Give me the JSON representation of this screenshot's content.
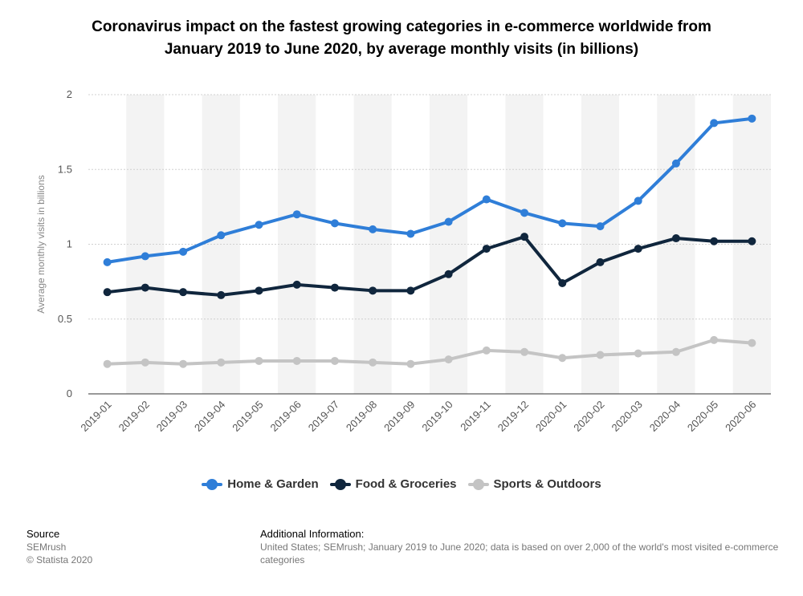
{
  "title_lines": [
    "Coronavirus impact on the fastest growing categories in e-commerce worldwide from",
    "January 2019 to June 2020, by average monthly visits (in billions)"
  ],
  "chart_data": {
    "type": "line",
    "title": "Coronavirus impact on the fastest growing categories in e-commerce worldwide from January 2019 to June 2020, by average monthly visits (in billions)",
    "xlabel": "",
    "ylabel": "Average monthly visits in billions",
    "ylim": [
      0,
      2
    ],
    "yticks": [
      "0",
      "0.5",
      "1",
      "1.5",
      "2"
    ],
    "categories": [
      "2019-01",
      "2019-02",
      "2019-03",
      "2019-04",
      "2019-05",
      "2019-06",
      "2019-07",
      "2019-08",
      "2019-09",
      "2019-10",
      "2019-11",
      "2019-12",
      "2020-01",
      "2020-02",
      "2020-03",
      "2020-04",
      "2020-05",
      "2020-06"
    ],
    "grid": true,
    "legend": "bottom",
    "series": [
      {
        "name": "Home & Garden",
        "color": "#2f7ed8",
        "values": [
          0.88,
          0.92,
          0.95,
          1.06,
          1.13,
          1.2,
          1.14,
          1.1,
          1.07,
          1.15,
          1.3,
          1.21,
          1.14,
          1.12,
          1.29,
          1.54,
          1.81,
          1.84
        ]
      },
      {
        "name": "Food & Groceries",
        "color": "#10263d",
        "values": [
          0.68,
          0.71,
          0.68,
          0.66,
          0.69,
          0.73,
          0.71,
          0.69,
          0.69,
          0.8,
          0.97,
          1.05,
          0.74,
          0.88,
          0.97,
          1.04,
          1.02,
          1.02
        ]
      },
      {
        "name": "Sports & Outdoors",
        "color": "#c4c4c4",
        "values": [
          0.2,
          0.21,
          0.2,
          0.21,
          0.22,
          0.22,
          0.22,
          0.21,
          0.2,
          0.23,
          0.29,
          0.28,
          0.24,
          0.26,
          0.27,
          0.28,
          0.36,
          0.34
        ]
      }
    ]
  },
  "footer": {
    "source_heading": "Source",
    "source_lines": [
      "SEMrush",
      "© Statista 2020"
    ],
    "info_heading": "Additional Information:",
    "info_text": "United States; SEMrush; January 2019 to June 2020; data is based on over 2,000 of the world's most visited e-commerce categories"
  }
}
